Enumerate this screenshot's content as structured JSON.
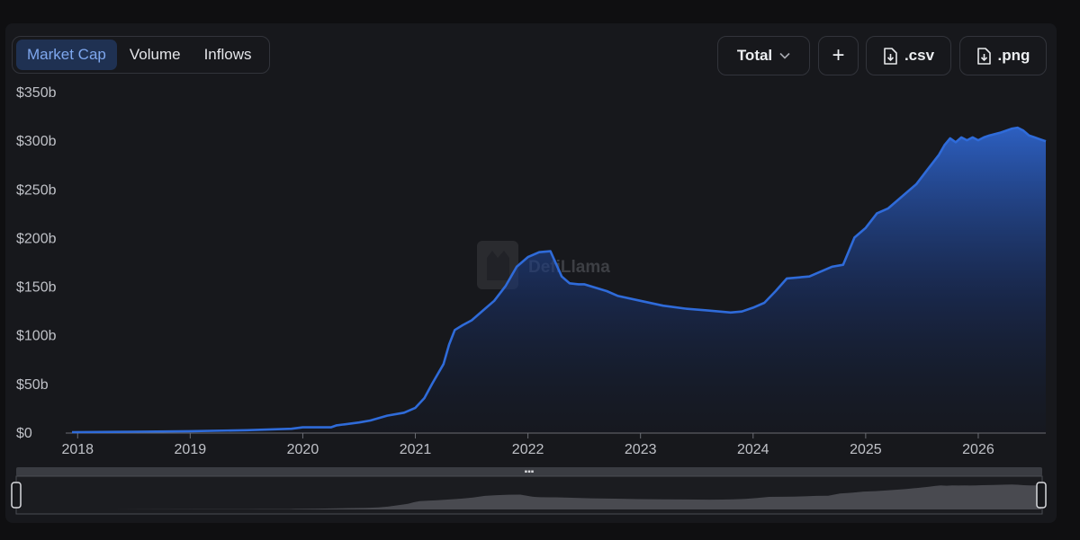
{
  "tabs": [
    {
      "label": "Market Cap",
      "active": true
    },
    {
      "label": "Volume",
      "active": false
    },
    {
      "label": "Inflows",
      "active": false
    }
  ],
  "toolbar": {
    "total_label": "Total",
    "add_label": "+",
    "csv_label": ".csv",
    "png_label": ".png"
  },
  "watermark": "DefiLlama",
  "colors": {
    "accent": "#2f6bd9",
    "background": "#17181c",
    "active_tab_bg": "#1f3152"
  },
  "chart_data": {
    "type": "area",
    "title": "",
    "xlabel": "",
    "ylabel": "",
    "y_tick_labels": [
      "$0",
      "$50b",
      "$100b",
      "$150b",
      "$200b",
      "$250b",
      "$300b",
      "$350b"
    ],
    "y_ticks": [
      0,
      50,
      100,
      150,
      200,
      250,
      300,
      350
    ],
    "ylim": [
      0,
      350
    ],
    "x_tick_labels": [
      "2018",
      "2019",
      "2020",
      "2021",
      "2022",
      "2023",
      "2024",
      "2025",
      "2026"
    ],
    "x_ticks": [
      2018,
      2019,
      2020,
      2021,
      2022,
      2023,
      2024,
      2025,
      2026
    ],
    "xlim": [
      2017.95,
      2026.6
    ],
    "grid": false,
    "series": [
      {
        "unit": "$b",
        "x": [
          2017.95,
          2018.5,
          2019.0,
          2019.5,
          2019.9,
          2020.0,
          2020.25,
          2020.3,
          2020.5,
          2020.6,
          2020.75,
          2020.9,
          2021.0,
          2021.08,
          2021.15,
          2021.25,
          2021.3,
          2021.35,
          2021.42,
          2021.5,
          2021.6,
          2021.7,
          2021.8,
          2021.9,
          2022.0,
          2022.1,
          2022.2,
          2022.3,
          2022.33,
          2022.37,
          2022.45,
          2022.5,
          2022.7,
          2022.8,
          2023.0,
          2023.2,
          2023.4,
          2023.6,
          2023.8,
          2023.9,
          2024.0,
          2024.1,
          2024.2,
          2024.3,
          2024.5,
          2024.6,
          2024.7,
          2024.8,
          2024.9,
          2025.0,
          2025.1,
          2025.2,
          2025.3,
          2025.45,
          2025.55,
          2025.65,
          2025.7,
          2025.75,
          2025.8,
          2025.85,
          2025.9,
          2025.95,
          2026.0,
          2026.05,
          2026.1,
          2026.2,
          2026.3,
          2026.35,
          2026.4,
          2026.45,
          2026.5,
          2026.55,
          2026.6
        ],
        "values": [
          0,
          0.5,
          1,
          2,
          3.5,
          5,
          5,
          7,
          10,
          12,
          17,
          20,
          25,
          35,
          50,
          70,
          90,
          105,
          110,
          115,
          125,
          135,
          150,
          170,
          180,
          185,
          186,
          160,
          157,
          153,
          152,
          152,
          145,
          140,
          135,
          130,
          127,
          125,
          123,
          124,
          128,
          133,
          145,
          158,
          160,
          165,
          170,
          172,
          200,
          210,
          225,
          230,
          240,
          255,
          270,
          285,
          295,
          302,
          298,
          303,
          300,
          303,
          300,
          303,
          305,
          308,
          312,
          313,
          310,
          305,
          303,
          301,
          299
        ]
      }
    ]
  }
}
